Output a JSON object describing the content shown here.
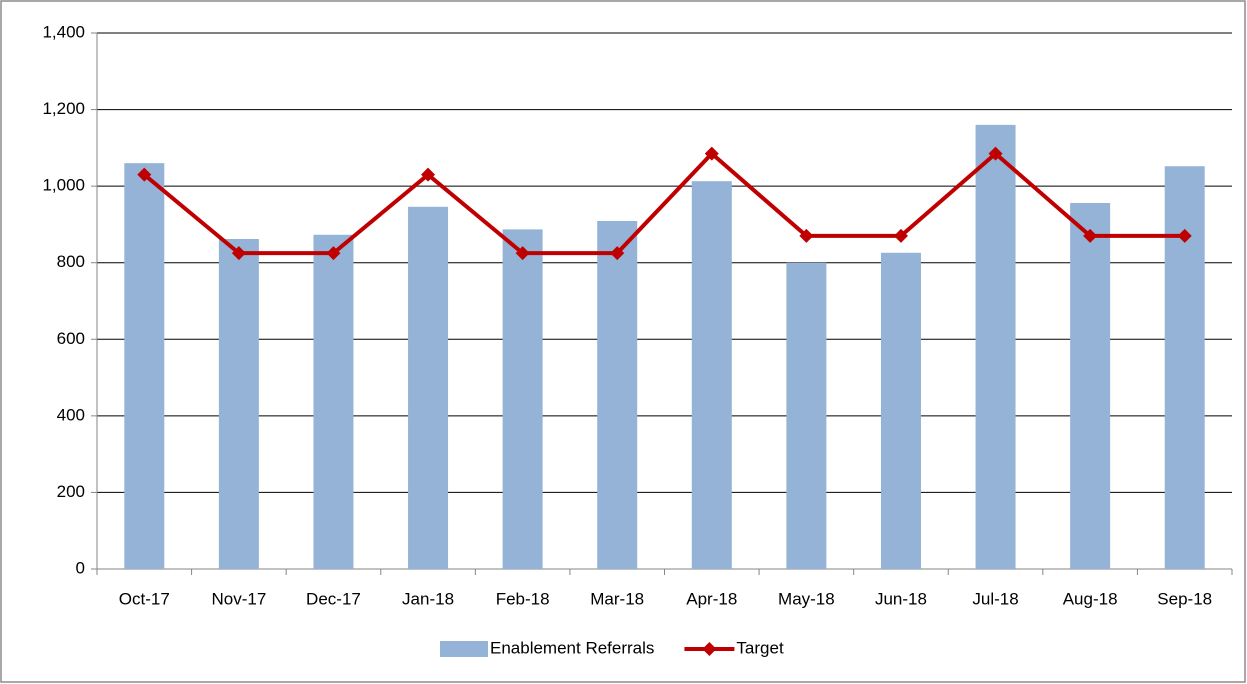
{
  "chart_data": {
    "type": "combo",
    "categories": [
      "Oct-17",
      "Nov-17",
      "Dec-17",
      "Jan-18",
      "Feb-18",
      "Mar-18",
      "Apr-18",
      "May-18",
      "Jun-18",
      "Jul-18",
      "Aug-18",
      "Sep-18"
    ],
    "series": [
      {
        "name": "Enablement Referrals",
        "type": "bar",
        "color": "#95b3d7",
        "values": [
          1060,
          862,
          873,
          946,
          887,
          909,
          1013,
          800,
          826,
          1160,
          956,
          1052
        ]
      },
      {
        "name": "Target",
        "type": "line",
        "color": "#c00000",
        "values": [
          1030,
          825,
          825,
          1030,
          825,
          825,
          1085,
          870,
          870,
          1085,
          870,
          870
        ]
      }
    ],
    "ylim": [
      0,
      1400
    ],
    "yticks": [
      0,
      200,
      400,
      600,
      800,
      {
        "value": 1000,
        "label": "1,000"
      },
      {
        "value": 1200,
        "label": "1,200"
      },
      {
        "value": 1400,
        "label": "1,400"
      }
    ],
    "grid": true,
    "legend": "bottom"
  }
}
